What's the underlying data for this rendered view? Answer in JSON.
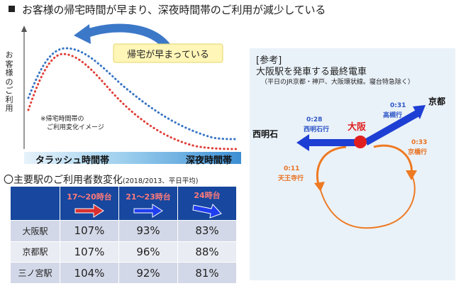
{
  "title": "お客様の帰宅時間が早まり、深夜時間帯のご利用が減少している",
  "chart": {
    "ylabel": [
      "お",
      "客",
      "様",
      "の",
      "ご",
      "利",
      "用"
    ],
    "bubble": "帰宅が早まっている",
    "note": "※帰宅時間帯の\n　ご利用変化イメージ",
    "axis_left": "タラッシュ時間帯",
    "axis_right": "深夜時間帯"
  },
  "chart_data": {
    "type": "line",
    "title": "",
    "xlabel": "",
    "ylabel": "お客様のご利用",
    "series": [
      {
        "color": "#3a76c4"
      },
      {
        "color": "#e0403a"
      }
    ],
    "annotations": [
      "帰宅が早まっている",
      "※帰宅時間帯の ご利用変化イメージ"
    ],
    "x_categories": [
      "タラッシュ時間帯",
      "深夜時間帯"
    ]
  },
  "section2": {
    "title": "〇主要駅のご利用者数変化",
    "sub": "(2018/2013、平日平均)"
  },
  "table": {
    "headers": [
      "17～20時台",
      "21～23時台",
      "24時台"
    ],
    "rows": [
      {
        "station": "大阪駅",
        "values": [
          "107%",
          "93%",
          "83%"
        ]
      },
      {
        "station": "京都駅",
        "values": [
          "107%",
          "96%",
          "88%"
        ]
      },
      {
        "station": "三ノ宮駅",
        "values": [
          "104%",
          "92%",
          "81%"
        ]
      }
    ]
  },
  "panel": {
    "ref_label": "[参考]",
    "heading": "大阪駅を発車する最終電車",
    "sub": "（平日のJR京都・神戸、大阪環状線。寝台特急除く）",
    "osaka": "大阪",
    "nishiakashi": "西明石",
    "kyoto": "京都",
    "west_time": "0:28",
    "west_dest": "西明石行",
    "east_time": "0:31",
    "east_dest": "高槻行",
    "loop_a_time": "0:33",
    "loop_a_dest": "京橋行",
    "loop_b_time": "0:11",
    "loop_b_dest": "天王寺行"
  },
  "colors": {
    "blue_line": "#3a76c4",
    "red_line": "#e0403a",
    "table_header": "#17479e",
    "header_text": "#ff7a7a",
    "arrow_blue": "#1f3ef0",
    "loop_orange": "#ee7a22",
    "osaka_dot": "#e02020"
  }
}
